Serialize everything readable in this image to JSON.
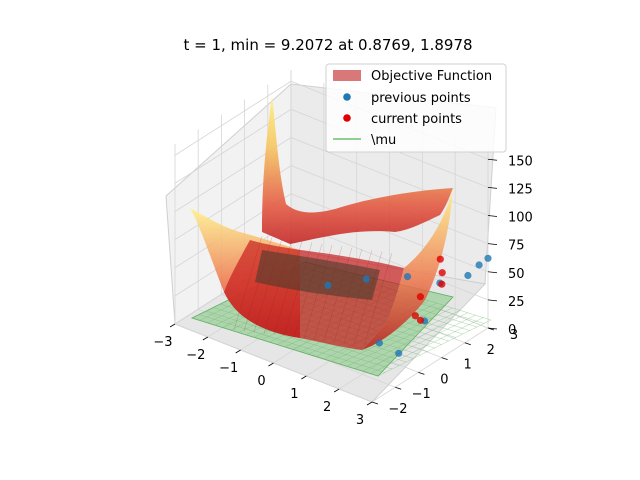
{
  "chart_data": {
    "type": "surface3d",
    "title": "t = 1, min = 9.2072 at 0.8769, 1.8978",
    "x_ticks": [
      "−3",
      "−2",
      "−1",
      "0",
      "1",
      "2",
      "3"
    ],
    "y_ticks": [
      "−2",
      "−1",
      "0",
      "1",
      "2",
      "3"
    ],
    "z_ticks": [
      "0",
      "25",
      "50",
      "75",
      "100",
      "125",
      "150"
    ],
    "xlim": [
      -3,
      3
    ],
    "ylim": [
      -2,
      3
    ],
    "zlim": [
      0,
      160
    ],
    "legend": {
      "placement": "top-right",
      "entries": [
        {
          "label": "Objective Function",
          "kind": "patch",
          "color": "#d87878"
        },
        {
          "label": "previous points",
          "kind": "marker",
          "color": "#1f77b4"
        },
        {
          "label": "current points",
          "kind": "marker",
          "color": "#e00000"
        },
        {
          "label": "\\mu",
          "kind": "line",
          "color": "#8fcf8f"
        }
      ]
    },
    "previous_points": [
      {
        "x": -0.6,
        "y": 1.2,
        "z": 20
      },
      {
        "x": 0.0,
        "y": 2.0,
        "z": 22
      },
      {
        "x": 0.9,
        "y": 2.5,
        "z": 28
      },
      {
        "x": 2.1,
        "y": 2.2,
        "z": 40
      },
      {
        "x": 2.6,
        "y": 2.7,
        "z": 46
      },
      {
        "x": 2.8,
        "y": 2.9,
        "z": 55
      },
      {
        "x": 3.0,
        "y": 3.0,
        "z": 62
      },
      {
        "x": 2.2,
        "y": 1.4,
        "z": 18
      },
      {
        "x": 1.6,
        "y": 0.3,
        "z": 6
      },
      {
        "x": 2.4,
        "y": 0.0,
        "z": 10
      }
    ],
    "current_points": [
      {
        "x": 1.9,
        "y": 2.5,
        "z": 55
      },
      {
        "x": 2.1,
        "y": 2.3,
        "z": 48
      },
      {
        "x": 2.3,
        "y": 2.0,
        "z": 44
      },
      {
        "x": 2.0,
        "y": 1.5,
        "z": 36
      },
      {
        "x": 2.2,
        "y": 1.0,
        "z": 28
      },
      {
        "x": 2.5,
        "y": 0.8,
        "z": 30
      }
    ]
  }
}
